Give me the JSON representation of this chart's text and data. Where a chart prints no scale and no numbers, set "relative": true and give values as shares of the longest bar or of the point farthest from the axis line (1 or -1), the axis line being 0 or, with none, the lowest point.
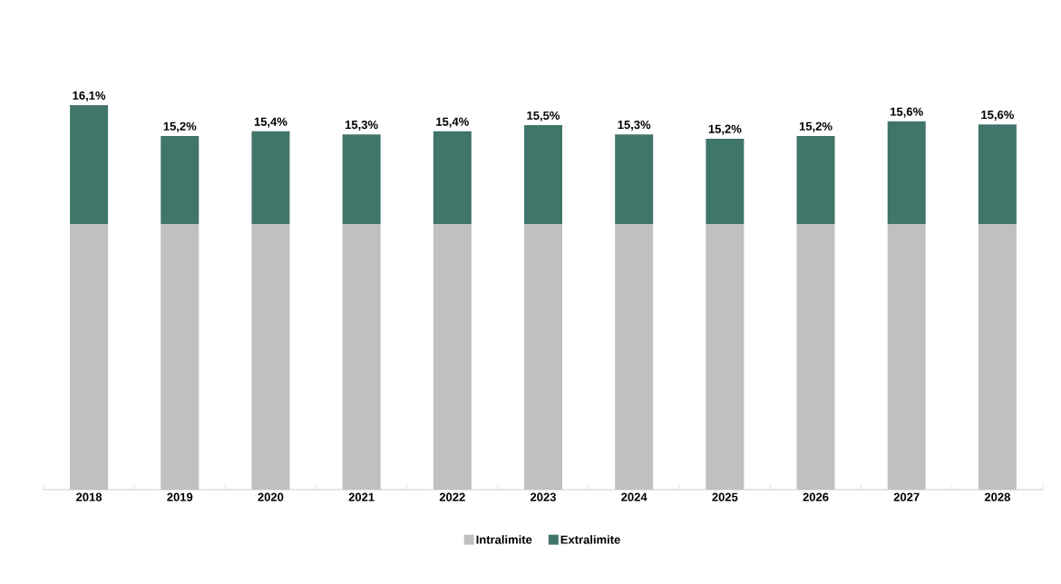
{
  "chart_data": {
    "type": "bar",
    "stacked": true,
    "relative": true,
    "legend": "bottom",
    "categories": [
      "2018",
      "2019",
      "2020",
      "2021",
      "2022",
      "2023",
      "2024",
      "2025",
      "2026",
      "2027",
      "2028"
    ],
    "series": [
      {
        "name": "Intralimite",
        "color": "#c0c0c0",
        "values": [
          0.691,
          0.691,
          0.691,
          0.691,
          0.691,
          0.691,
          0.691,
          0.691,
          0.691,
          0.691,
          0.691
        ]
      },
      {
        "name": "Extralimite",
        "color": "#40756a",
        "values": [
          0.309,
          0.229,
          0.241,
          0.233,
          0.241,
          0.257,
          0.233,
          0.222,
          0.229,
          0.267,
          0.259
        ]
      }
    ],
    "annotations": [
      {
        "text": "16,1%",
        "x": "2018",
        "y": 1.0
      },
      {
        "text": "15,2%",
        "x": "2019",
        "y": 0.92
      },
      {
        "text": "15,4%",
        "x": "2020",
        "y": 0.932
      },
      {
        "text": "15,3%",
        "x": "2021",
        "y": 0.924
      },
      {
        "text": "15,4%",
        "x": "2022",
        "y": 0.932
      },
      {
        "text": "15,5%",
        "x": "2023",
        "y": 0.948
      },
      {
        "text": "15,3%",
        "x": "2024",
        "y": 0.924
      },
      {
        "text": "15,2%",
        "x": "2025",
        "y": 0.913
      },
      {
        "text": "15,2%",
        "x": "2026",
        "y": 0.92
      },
      {
        "text": "15,6%",
        "x": "2027",
        "y": 0.958
      },
      {
        "text": "15,6%",
        "x": "2028",
        "y": 0.95
      }
    ]
  }
}
